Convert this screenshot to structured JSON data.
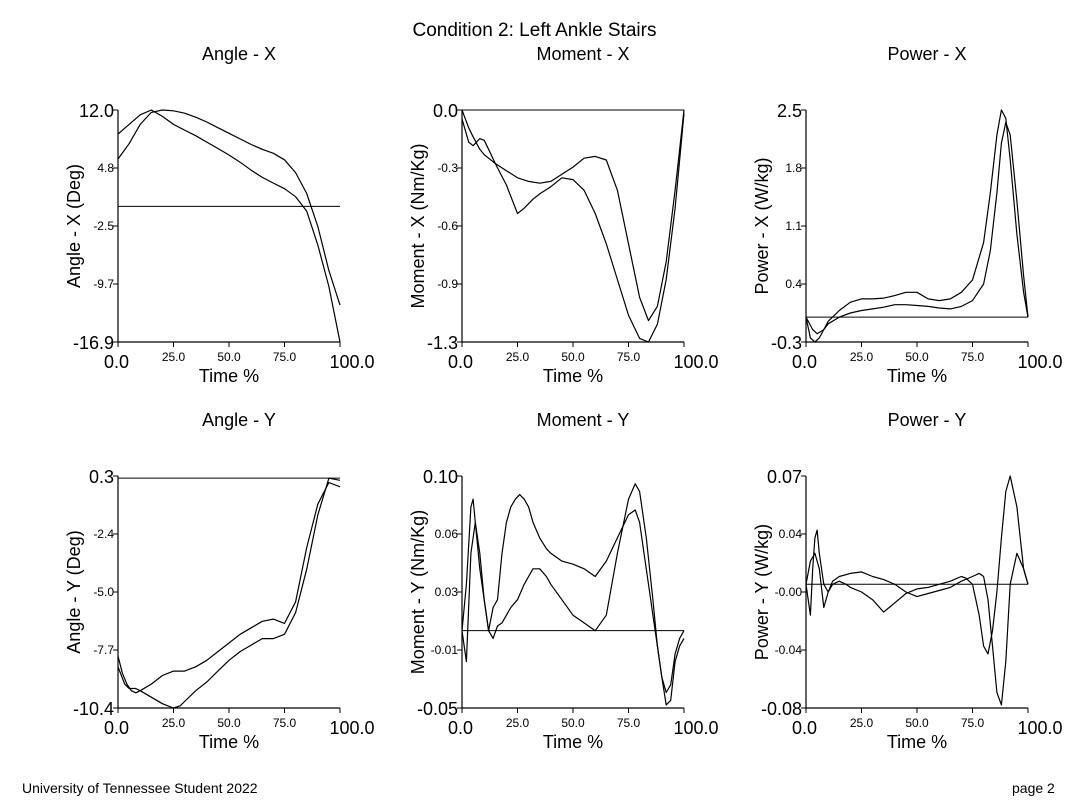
{
  "page": {
    "title": "Condition 2: Left Ankle Stairs",
    "footer_left": "University of Tennessee Student 2022",
    "footer_right": "page 2"
  },
  "chart_data": [
    {
      "type": "line",
      "title": "Angle - X",
      "xlabel": "Time %",
      "ylabel": "Angle - X (Deg)",
      "xlim": [
        0,
        100
      ],
      "ylim": [
        -16.9,
        12.0
      ],
      "x_ticks": [
        "0.0",
        "25.0",
        "50.0",
        "75.0",
        "100.0"
      ],
      "y_ticks": [
        "12.0",
        "4.8",
        "-2.5",
        "-9.7",
        "-16.9"
      ],
      "baseline": 0,
      "grid": false,
      "series": [
        {
          "x": [
            0,
            5,
            10,
            15,
            20,
            25,
            30,
            35,
            40,
            45,
            50,
            55,
            60,
            65,
            70,
            75,
            80,
            85,
            90,
            95,
            100
          ],
          "values": [
            9.0,
            10.2,
            11.4,
            12.0,
            11.2,
            10.2,
            9.5,
            8.8,
            8.0,
            7.2,
            6.4,
            5.5,
            4.5,
            3.6,
            2.9,
            2.2,
            1.2,
            -0.6,
            -4.8,
            -10.0,
            -16.9
          ]
        },
        {
          "x": [
            0,
            5,
            10,
            15,
            20,
            25,
            30,
            35,
            40,
            45,
            50,
            55,
            60,
            65,
            70,
            75,
            80,
            85,
            90,
            95,
            100
          ],
          "values": [
            5.9,
            7.8,
            10.2,
            11.7,
            12.0,
            11.9,
            11.6,
            11.1,
            10.5,
            9.8,
            9.1,
            8.4,
            7.7,
            7.1,
            6.6,
            5.8,
            4.2,
            1.6,
            -2.5,
            -8.0,
            -12.3
          ]
        }
      ]
    },
    {
      "type": "line",
      "title": "Moment - X",
      "xlabel": "Time %",
      "ylabel": "Moment - X (Nm/Kg)",
      "xlim": [
        0,
        100
      ],
      "ylim": [
        -1.3,
        0.0
      ],
      "x_ticks": [
        "0.0",
        "25.0",
        "50.0",
        "75.0",
        "100.0"
      ],
      "y_ticks": [
        "0.0",
        "-0.3",
        "-0.6",
        "-0.9",
        "-1.3"
      ],
      "baseline": 0,
      "grid": false,
      "series": [
        {
          "x": [
            0,
            3,
            5,
            8,
            10,
            12,
            15,
            20,
            25,
            28,
            32,
            35,
            40,
            45,
            50,
            55,
            60,
            65,
            70,
            75,
            80,
            84,
            88,
            92,
            96,
            100
          ],
          "values": [
            -0.05,
            -0.18,
            -0.2,
            -0.16,
            -0.17,
            -0.22,
            -0.3,
            -0.42,
            -0.58,
            -0.55,
            -0.5,
            -0.47,
            -0.43,
            -0.38,
            -0.39,
            -0.45,
            -0.58,
            -0.75,
            -0.95,
            -1.15,
            -1.28,
            -1.3,
            -1.2,
            -0.95,
            -0.55,
            -0.02
          ]
        },
        {
          "x": [
            0,
            3,
            5,
            8,
            10,
            12,
            15,
            20,
            25,
            30,
            35,
            40,
            45,
            50,
            55,
            60,
            65,
            70,
            75,
            80,
            84,
            88,
            92,
            96,
            100
          ],
          "values": [
            0,
            -0.1,
            -0.15,
            -0.22,
            -0.25,
            -0.27,
            -0.3,
            -0.34,
            -0.38,
            -0.4,
            -0.41,
            -0.4,
            -0.36,
            -0.32,
            -0.27,
            -0.26,
            -0.28,
            -0.45,
            -0.75,
            -1.05,
            -1.18,
            -1.1,
            -0.85,
            -0.45,
            0.0
          ]
        }
      ]
    },
    {
      "type": "line",
      "title": "Power - X",
      "xlabel": "Time %",
      "ylabel": "Power - X (W/kg)",
      "xlim": [
        0,
        100
      ],
      "ylim": [
        -0.3,
        2.5
      ],
      "x_ticks": [
        "0.0",
        "25.0",
        "50.0",
        "75.0",
        "100.0"
      ],
      "y_ticks": [
        "2.5",
        "1.8",
        "1.1",
        "0.4",
        "-0.3"
      ],
      "baseline": 0,
      "grid": false,
      "series": [
        {
          "x": [
            0,
            2,
            4,
            6,
            8,
            10,
            15,
            20,
            25,
            30,
            35,
            40,
            45,
            50,
            55,
            60,
            65,
            70,
            75,
            80,
            83,
            86,
            88,
            90,
            92,
            95,
            98,
            100
          ],
          "values": [
            0.0,
            -0.25,
            -0.3,
            -0.25,
            -0.15,
            -0.05,
            0.08,
            0.18,
            0.22,
            0.22,
            0.23,
            0.26,
            0.3,
            0.3,
            0.22,
            0.2,
            0.22,
            0.3,
            0.45,
            0.9,
            1.5,
            2.2,
            2.5,
            2.4,
            1.9,
            1.0,
            0.3,
            0.0
          ]
        },
        {
          "x": [
            0,
            3,
            5,
            8,
            10,
            15,
            20,
            25,
            30,
            35,
            40,
            45,
            50,
            55,
            60,
            65,
            70,
            75,
            80,
            83,
            86,
            88,
            90,
            92,
            95,
            98,
            100
          ],
          "values": [
            0.0,
            -0.15,
            -0.2,
            -0.15,
            -0.08,
            0.0,
            0.05,
            0.08,
            0.1,
            0.12,
            0.15,
            0.15,
            0.14,
            0.13,
            0.11,
            0.1,
            0.13,
            0.2,
            0.4,
            0.8,
            1.5,
            2.1,
            2.35,
            2.2,
            1.4,
            0.5,
            0.0
          ]
        }
      ]
    },
    {
      "type": "line",
      "title": "Angle - Y",
      "xlabel": "Time %",
      "ylabel": "Angle - Y (Deg)",
      "xlim": [
        0,
        100
      ],
      "ylim": [
        -10.4,
        0.3
      ],
      "x_ticks": [
        "0.0",
        "25.0",
        "50.0",
        "75.0",
        "100.0"
      ],
      "y_ticks": [
        "0.3",
        "-2.4",
        "-5.0",
        "-7.7",
        "-10.4"
      ],
      "baseline": 0.2,
      "grid": false,
      "series": [
        {
          "x": [
            0,
            3,
            5,
            8,
            10,
            15,
            20,
            25,
            28,
            30,
            35,
            40,
            45,
            50,
            55,
            60,
            65,
            70,
            75,
            80,
            85,
            90,
            95,
            100
          ],
          "values": [
            -8.5,
            -9.3,
            -9.5,
            -9.5,
            -9.6,
            -9.9,
            -10.2,
            -10.4,
            -10.3,
            -10.1,
            -9.6,
            -9.2,
            -8.7,
            -8.2,
            -7.8,
            -7.5,
            -7.2,
            -7.2,
            -7.0,
            -6.0,
            -4.0,
            -1.5,
            0.2,
            0.1
          ]
        },
        {
          "x": [
            0,
            2,
            4,
            6,
            8,
            10,
            15,
            20,
            25,
            30,
            35,
            40,
            45,
            50,
            55,
            60,
            65,
            70,
            75,
            80,
            85,
            90,
            95,
            100
          ],
          "values": [
            -8.0,
            -8.8,
            -9.3,
            -9.6,
            -9.7,
            -9.6,
            -9.3,
            -8.9,
            -8.7,
            -8.7,
            -8.5,
            -8.2,
            -7.8,
            -7.4,
            -7.0,
            -6.7,
            -6.4,
            -6.3,
            -6.5,
            -5.5,
            -3.0,
            -1.0,
            0.0,
            -0.2
          ]
        }
      ]
    },
    {
      "type": "line",
      "title": "Moment - Y",
      "xlabel": "Time %",
      "ylabel": "Moment - Y (Nm/Kg)",
      "xlim": [
        0,
        100
      ],
      "ylim": [
        -0.05,
        0.1
      ],
      "x_ticks": [
        "0.0",
        "25.0",
        "50.0",
        "75.0",
        "100.0"
      ],
      "y_ticks": [
        "0.10",
        "0.06",
        "0.03",
        "-0.01",
        "-0.05"
      ],
      "baseline": 0.0,
      "grid": false,
      "series": [
        {
          "x": [
            0,
            2,
            4,
            6,
            8,
            10,
            12,
            14,
            16,
            18,
            20,
            22,
            24,
            26,
            28,
            30,
            32,
            35,
            38,
            40,
            45,
            50,
            55,
            60,
            65,
            70,
            75,
            78,
            80,
            82,
            84,
            86,
            88,
            90,
            92,
            94,
            96,
            98,
            100
          ],
          "values": [
            0.0,
            -0.02,
            0.05,
            0.07,
            0.05,
            0.02,
            0.0,
            0.015,
            0.02,
            0.05,
            0.07,
            0.08,
            0.085,
            0.088,
            0.085,
            0.08,
            0.07,
            0.06,
            0.053,
            0.05,
            0.045,
            0.043,
            0.04,
            0.035,
            0.045,
            0.06,
            0.075,
            0.078,
            0.07,
            0.05,
            0.03,
            0.01,
            -0.01,
            -0.03,
            -0.048,
            -0.045,
            -0.02,
            -0.01,
            -0.005
          ]
        },
        {
          "x": [
            0,
            2,
            4,
            5,
            6,
            8,
            10,
            12,
            14,
            16,
            18,
            20,
            22,
            25,
            28,
            30,
            32,
            35,
            38,
            40,
            45,
            50,
            55,
            60,
            65,
            70,
            75,
            78,
            80,
            83,
            86,
            88,
            90,
            92,
            94,
            96,
            98,
            100
          ],
          "values": [
            0.0,
            0.03,
            0.08,
            0.085,
            0.07,
            0.04,
            0.02,
            0.0,
            -0.005,
            0.003,
            0.005,
            0.01,
            0.015,
            0.02,
            0.03,
            0.035,
            0.04,
            0.04,
            0.035,
            0.03,
            0.02,
            0.01,
            0.005,
            0.0,
            0.01,
            0.05,
            0.085,
            0.095,
            0.09,
            0.06,
            0.02,
            -0.01,
            -0.03,
            -0.04,
            -0.035,
            -0.015,
            -0.005,
            0.0
          ]
        }
      ]
    },
    {
      "type": "line",
      "title": "Power - Y",
      "xlabel": "Time %",
      "ylabel": "Power - Y (W/kg)",
      "xlim": [
        0,
        100
      ],
      "ylim": [
        -0.08,
        0.07
      ],
      "x_ticks": [
        "0.0",
        "25.0",
        "50.0",
        "75.0",
        "100.0"
      ],
      "y_ticks": [
        "0.07",
        "0.04",
        "-0.00",
        "-0.04",
        "-0.08"
      ],
      "baseline": 0.0,
      "grid": false,
      "series": [
        {
          "x": [
            0,
            1,
            2,
            3,
            4,
            5,
            6,
            8,
            10,
            12,
            15,
            20,
            25,
            30,
            35,
            40,
            45,
            50,
            55,
            60,
            65,
            70,
            75,
            78,
            80,
            82,
            84,
            86,
            88,
            90,
            92,
            95,
            98,
            100
          ],
          "values": [
            0.0,
            -0.01,
            -0.02,
            0.01,
            0.03,
            0.035,
            0.02,
            0.0,
            -0.005,
            0.002,
            0.005,
            0.007,
            0.008,
            0.005,
            0.003,
            0.0,
            -0.005,
            -0.008,
            -0.006,
            -0.004,
            -0.002,
            0.002,
            0.005,
            0.007,
            0.005,
            -0.01,
            -0.04,
            -0.07,
            -0.078,
            -0.05,
            0.0,
            0.02,
            0.01,
            0.0
          ]
        },
        {
          "x": [
            0,
            2,
            4,
            6,
            8,
            10,
            12,
            15,
            18,
            20,
            25,
            30,
            35,
            40,
            45,
            50,
            55,
            60,
            65,
            70,
            72,
            75,
            78,
            80,
            82,
            84,
            86,
            88,
            90,
            92,
            95,
            98,
            100
          ],
          "values": [
            0.0,
            0.015,
            0.02,
            0.01,
            -0.015,
            -0.005,
            0.0,
            0.002,
            0.0,
            -0.002,
            -0.005,
            -0.01,
            -0.018,
            -0.012,
            -0.006,
            -0.003,
            -0.002,
            0.0,
            0.002,
            0.005,
            0.004,
            0.0,
            -0.02,
            -0.04,
            -0.045,
            -0.03,
            -0.005,
            0.03,
            0.06,
            0.07,
            0.05,
            0.01,
            0.0
          ]
        }
      ]
    }
  ]
}
